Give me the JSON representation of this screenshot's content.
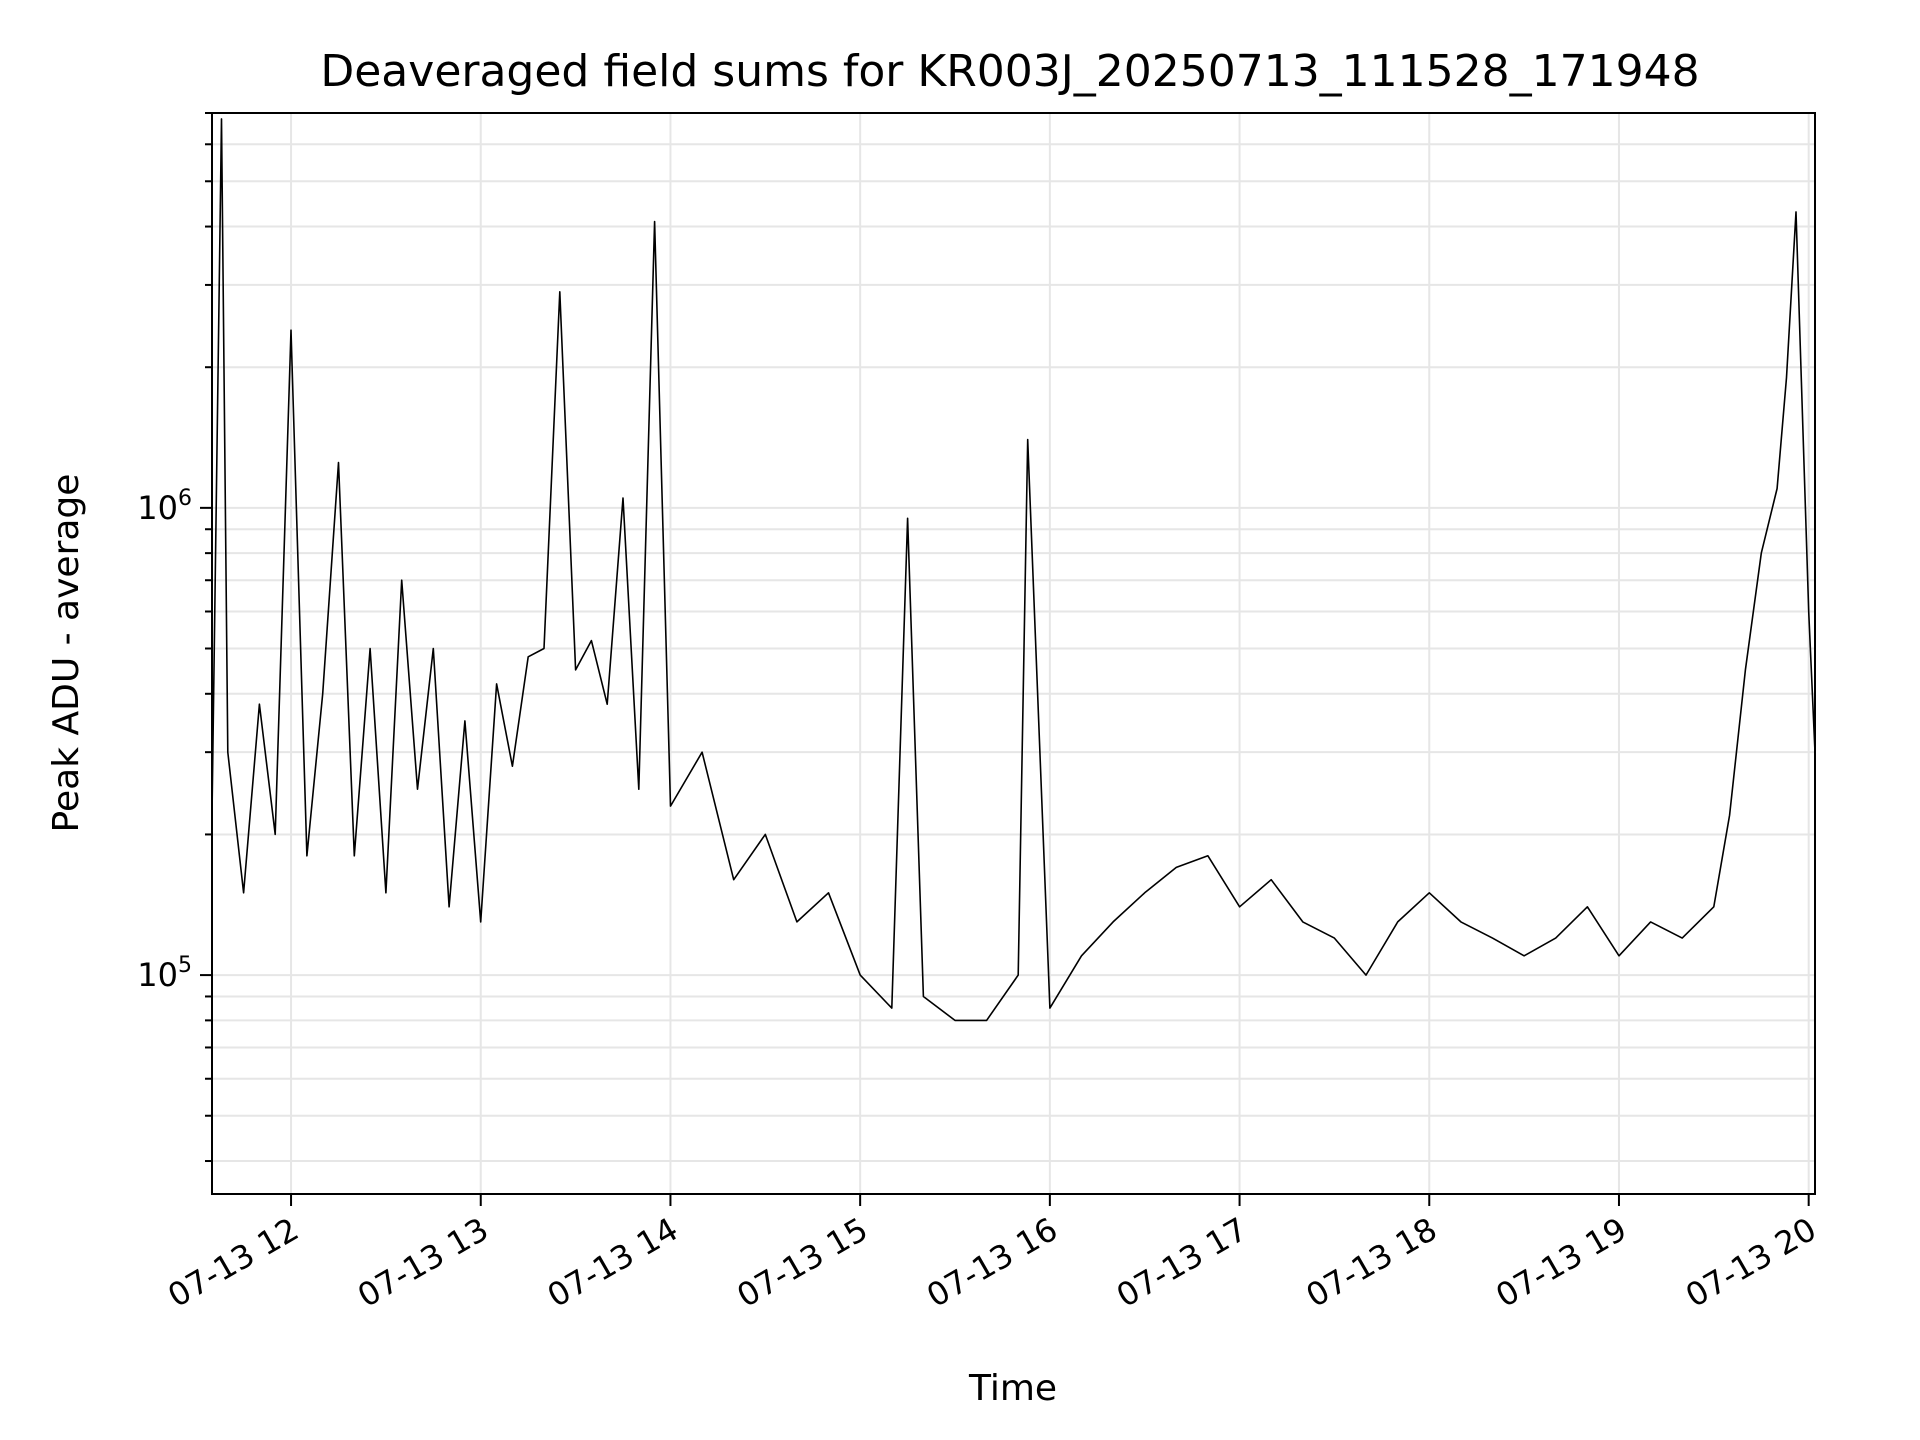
{
  "chart_data": {
    "type": "line",
    "title": "Deaveraged field sums for KR003J_20250713_111528_171948",
    "xlabel": "Time",
    "ylabel": "Peak ADU - average",
    "yscale": "log",
    "ylim": [
      34000,
      7000000
    ],
    "xlim": [
      "07-13 11:35",
      "07-13 20:02"
    ],
    "x_ticks": [
      "07-13 12",
      "07-13 13",
      "07-13 14",
      "07-13 15",
      "07-13 16",
      "07-13 17",
      "07-13 18",
      "07-13 19",
      "07-13 20"
    ],
    "y_ticks": [
      {
        "base": "10",
        "exp": "5",
        "value": 100000
      },
      {
        "base": "10",
        "exp": "6",
        "value": 1000000
      }
    ],
    "grid": true,
    "line_color": "#000000",
    "series": [
      {
        "points": [
          [
            "07-13 11:35",
            220000
          ],
          [
            "07-13 11:38",
            6800000
          ],
          [
            "07-13 11:40",
            300000
          ],
          [
            "07-13 11:45",
            150000
          ],
          [
            "07-13 11:50",
            380000
          ],
          [
            "07-13 11:55",
            200000
          ],
          [
            "07-13 12:00",
            2400000
          ],
          [
            "07-13 12:05",
            180000
          ],
          [
            "07-13 12:10",
            400000
          ],
          [
            "07-13 12:15",
            1250000
          ],
          [
            "07-13 12:20",
            180000
          ],
          [
            "07-13 12:25",
            500000
          ],
          [
            "07-13 12:30",
            150000
          ],
          [
            "07-13 12:35",
            700000
          ],
          [
            "07-13 12:40",
            250000
          ],
          [
            "07-13 12:45",
            500000
          ],
          [
            "07-13 12:50",
            140000
          ],
          [
            "07-13 12:55",
            350000
          ],
          [
            "07-13 13:00",
            130000
          ],
          [
            "07-13 13:05",
            420000
          ],
          [
            "07-13 13:10",
            280000
          ],
          [
            "07-13 13:15",
            480000
          ],
          [
            "07-13 13:20",
            500000
          ],
          [
            "07-13 13:25",
            2900000
          ],
          [
            "07-13 13:30",
            450000
          ],
          [
            "07-13 13:35",
            520000
          ],
          [
            "07-13 13:40",
            380000
          ],
          [
            "07-13 13:45",
            1050000
          ],
          [
            "07-13 13:50",
            250000
          ],
          [
            "07-13 13:55",
            4100000
          ],
          [
            "07-13 14:00",
            230000
          ],
          [
            "07-13 14:10",
            300000
          ],
          [
            "07-13 14:20",
            160000
          ],
          [
            "07-13 14:30",
            200000
          ],
          [
            "07-13 14:40",
            130000
          ],
          [
            "07-13 14:50",
            150000
          ],
          [
            "07-13 15:00",
            100000
          ],
          [
            "07-13 15:10",
            85000
          ],
          [
            "07-13 15:15",
            950000
          ],
          [
            "07-13 15:20",
            90000
          ],
          [
            "07-13 15:30",
            80000
          ],
          [
            "07-13 15:40",
            80000
          ],
          [
            "07-13 15:50",
            100000
          ],
          [
            "07-13 15:53",
            1400000
          ],
          [
            "07-13 16:00",
            85000
          ],
          [
            "07-13 16:10",
            110000
          ],
          [
            "07-13 16:20",
            130000
          ],
          [
            "07-13 16:30",
            150000
          ],
          [
            "07-13 16:40",
            170000
          ],
          [
            "07-13 16:50",
            180000
          ],
          [
            "07-13 17:00",
            140000
          ],
          [
            "07-13 17:10",
            160000
          ],
          [
            "07-13 17:20",
            130000
          ],
          [
            "07-13 17:30",
            120000
          ],
          [
            "07-13 17:40",
            100000
          ],
          [
            "07-13 17:50",
            130000
          ],
          [
            "07-13 18:00",
            150000
          ],
          [
            "07-13 18:10",
            130000
          ],
          [
            "07-13 18:20",
            120000
          ],
          [
            "07-13 18:30",
            110000
          ],
          [
            "07-13 18:40",
            120000
          ],
          [
            "07-13 18:50",
            140000
          ],
          [
            "07-13 19:00",
            110000
          ],
          [
            "07-13 19:10",
            130000
          ],
          [
            "07-13 19:20",
            120000
          ],
          [
            "07-13 19:30",
            140000
          ],
          [
            "07-13 19:35",
            220000
          ],
          [
            "07-13 19:40",
            450000
          ],
          [
            "07-13 19:45",
            800000
          ],
          [
            "07-13 19:50",
            1100000
          ],
          [
            "07-13 19:53",
            1900000
          ],
          [
            "07-13 19:56",
            4300000
          ],
          [
            "07-13 20:00",
            600000
          ],
          [
            "07-13 20:02",
            300000
          ]
        ]
      }
    ]
  }
}
